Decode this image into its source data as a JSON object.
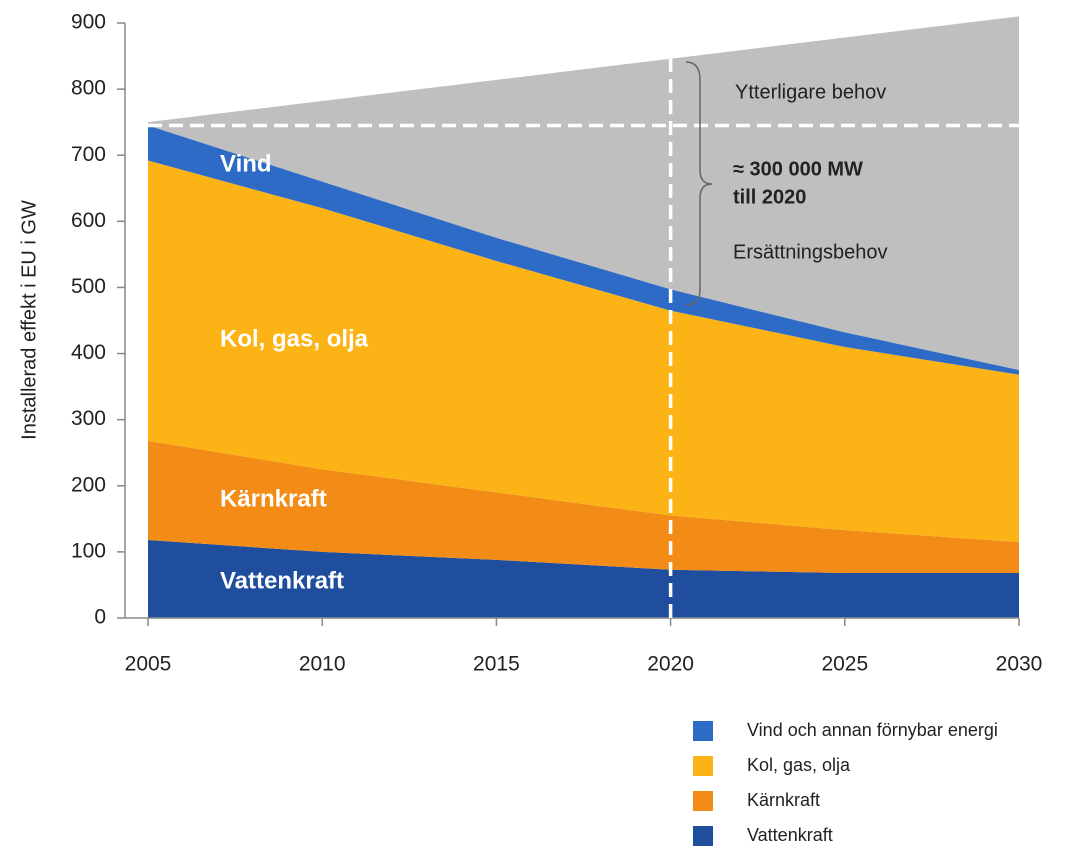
{
  "chart_data": {
    "type": "stacked_area",
    "y_label": "Installerad effekt i EU i GW",
    "x": [
      2005,
      2010,
      2015,
      2020,
      2025,
      2030
    ],
    "xlim": [
      2005,
      2030
    ],
    "xticks": [
      2005,
      2010,
      2015,
      2020,
      2025,
      2030
    ],
    "ylim": [
      0,
      900
    ],
    "yticks": [
      0,
      100,
      200,
      300,
      400,
      500,
      600,
      700,
      800,
      900
    ],
    "series": [
      {
        "name": "Vattenkraft",
        "color": "#1f4e9f",
        "values": [
          118,
          100,
          88,
          73,
          68,
          68
        ]
      },
      {
        "name": "Kärnkraft",
        "color": "#f28c16",
        "values": [
          150,
          125,
          102,
          82,
          65,
          47
        ]
      },
      {
        "name": "Kol, gas, olja",
        "color": "#fbb316",
        "values": [
          424,
          395,
          350,
          310,
          277,
          253
        ]
      },
      {
        "name": "Vind och annan förnybar energi",
        "color": "#2e6bc6",
        "values": [
          53,
          40,
          35,
          32,
          22,
          7
        ]
      }
    ],
    "total": {
      "color": "#bfbfbf",
      "values": [
        750,
        782,
        814,
        846,
        878,
        910
      ]
    },
    "hline": 745,
    "vline": 2020,
    "area_labels": [
      "Vattenkraft",
      "Kärnkraft",
      "Kol, gas, olja",
      "Vind"
    ],
    "annotations": [
      "Ytterligare behov",
      "≈  300 000 MW",
      "till 2020",
      "Ersättningsbehov"
    ]
  }
}
